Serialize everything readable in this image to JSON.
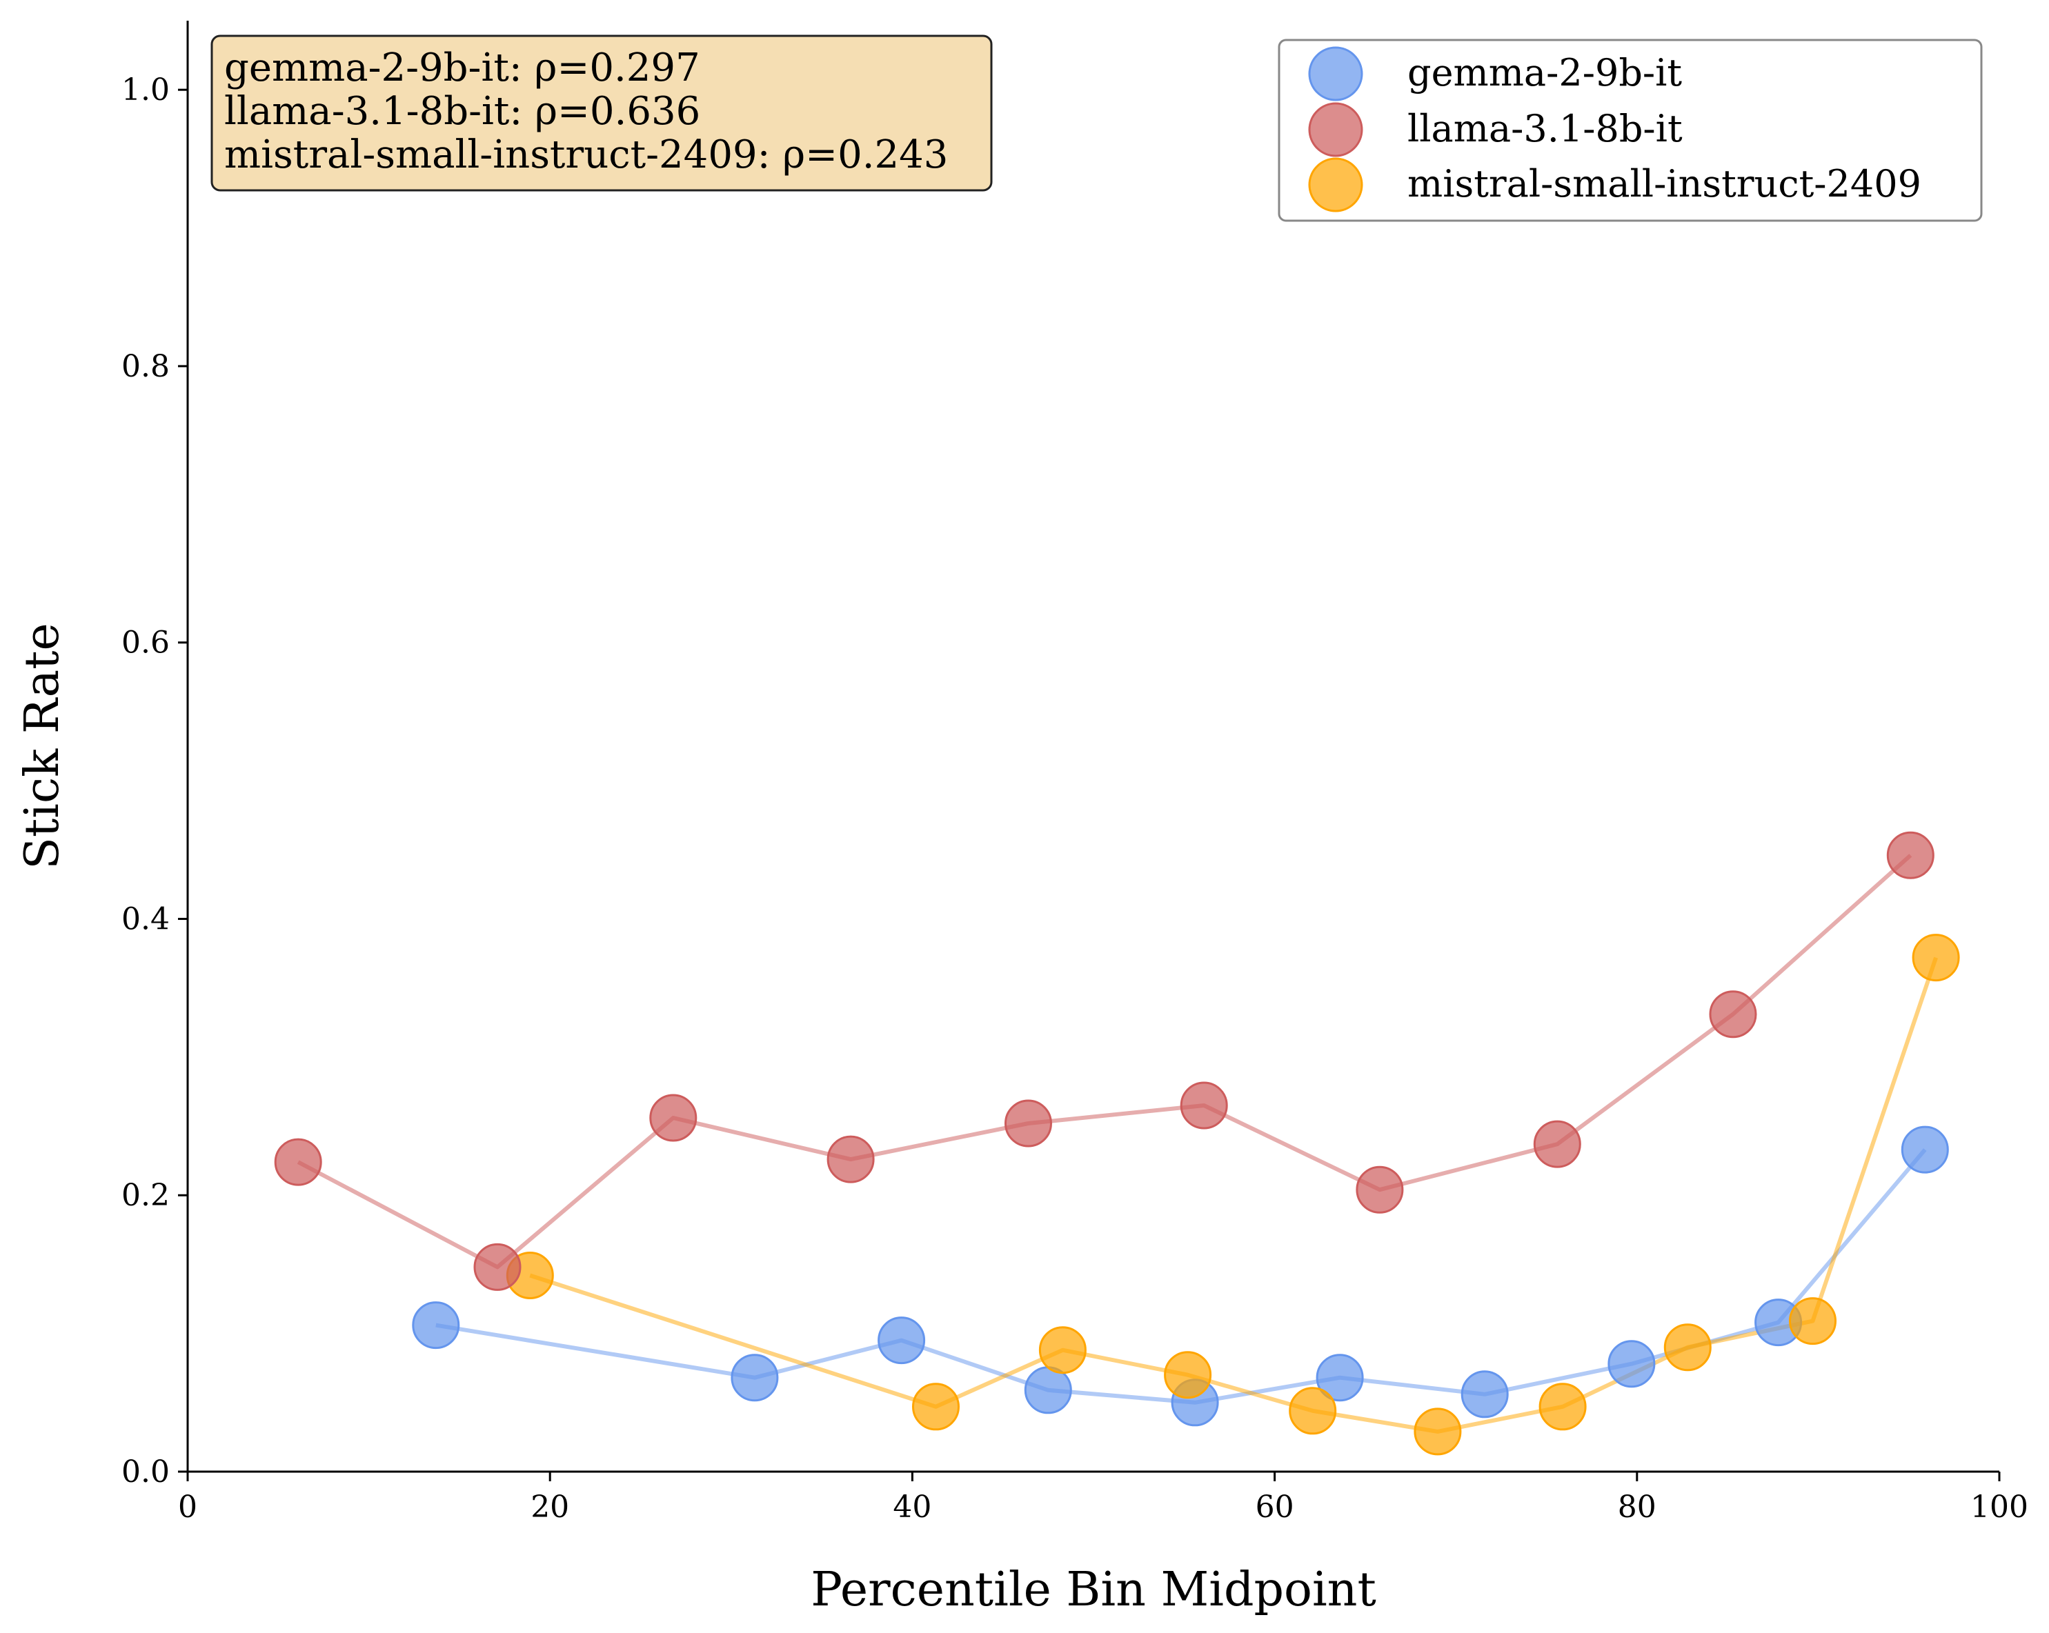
{
  "chart_data": {
    "type": "line",
    "title": "",
    "xlabel": "Percentile Bin Midpoint",
    "ylabel": "Stick Rate",
    "xlim": [
      0,
      100
    ],
    "ylim": [
      0,
      1.05
    ],
    "xticks": [
      0,
      20,
      40,
      60,
      80,
      100
    ],
    "xtick_labels": [
      "0",
      "20",
      "40",
      "60",
      "80",
      "100"
    ],
    "yticks": [
      0.0,
      0.2,
      0.4,
      0.6,
      0.8,
      1.0
    ],
    "ytick_labels": [
      "0.0",
      "0.2",
      "0.4",
      "0.6",
      "0.8",
      "1.0"
    ],
    "grid": false,
    "legend_position": "top-right",
    "series": [
      {
        "name": "gemma-2-9b-it",
        "color": "#6495ED",
        "x": [
          13.7,
          31.3,
          39.4,
          47.5,
          55.6,
          63.6,
          71.6,
          79.7,
          87.8,
          95.9
        ],
        "y": [
          0.106,
          0.068,
          0.095,
          0.059,
          0.05,
          0.068,
          0.056,
          0.078,
          0.108,
          0.233
        ]
      },
      {
        "name": "llama-3.1-8b-it",
        "color": "#CD5C5C",
        "x": [
          6.1,
          17.1,
          26.8,
          36.6,
          46.4,
          56.1,
          65.8,
          75.6,
          85.3,
          95.1
        ],
        "y": [
          0.224,
          0.148,
          0.256,
          0.226,
          0.252,
          0.265,
          0.204,
          0.237,
          0.331,
          0.446
        ]
      },
      {
        "name": "mistral-small-instruct-2409",
        "color": "#FFA500",
        "x": [
          18.9,
          41.3,
          48.3,
          55.2,
          62.1,
          69.0,
          75.9,
          82.8,
          89.7,
          96.5
        ],
        "y": [
          0.142,
          0.047,
          0.088,
          0.07,
          0.044,
          0.029,
          0.047,
          0.09,
          0.109,
          0.372
        ]
      }
    ],
    "annotations": [
      "gemma-2-9b-it: ρ=0.297",
      "llama-3.1-8b-it: ρ=0.636",
      "mistral-small-instruct-2409: ρ=0.243"
    ]
  },
  "colors": {
    "stat_box_fill": "#F5DEB3",
    "legend_border": "#888888"
  }
}
